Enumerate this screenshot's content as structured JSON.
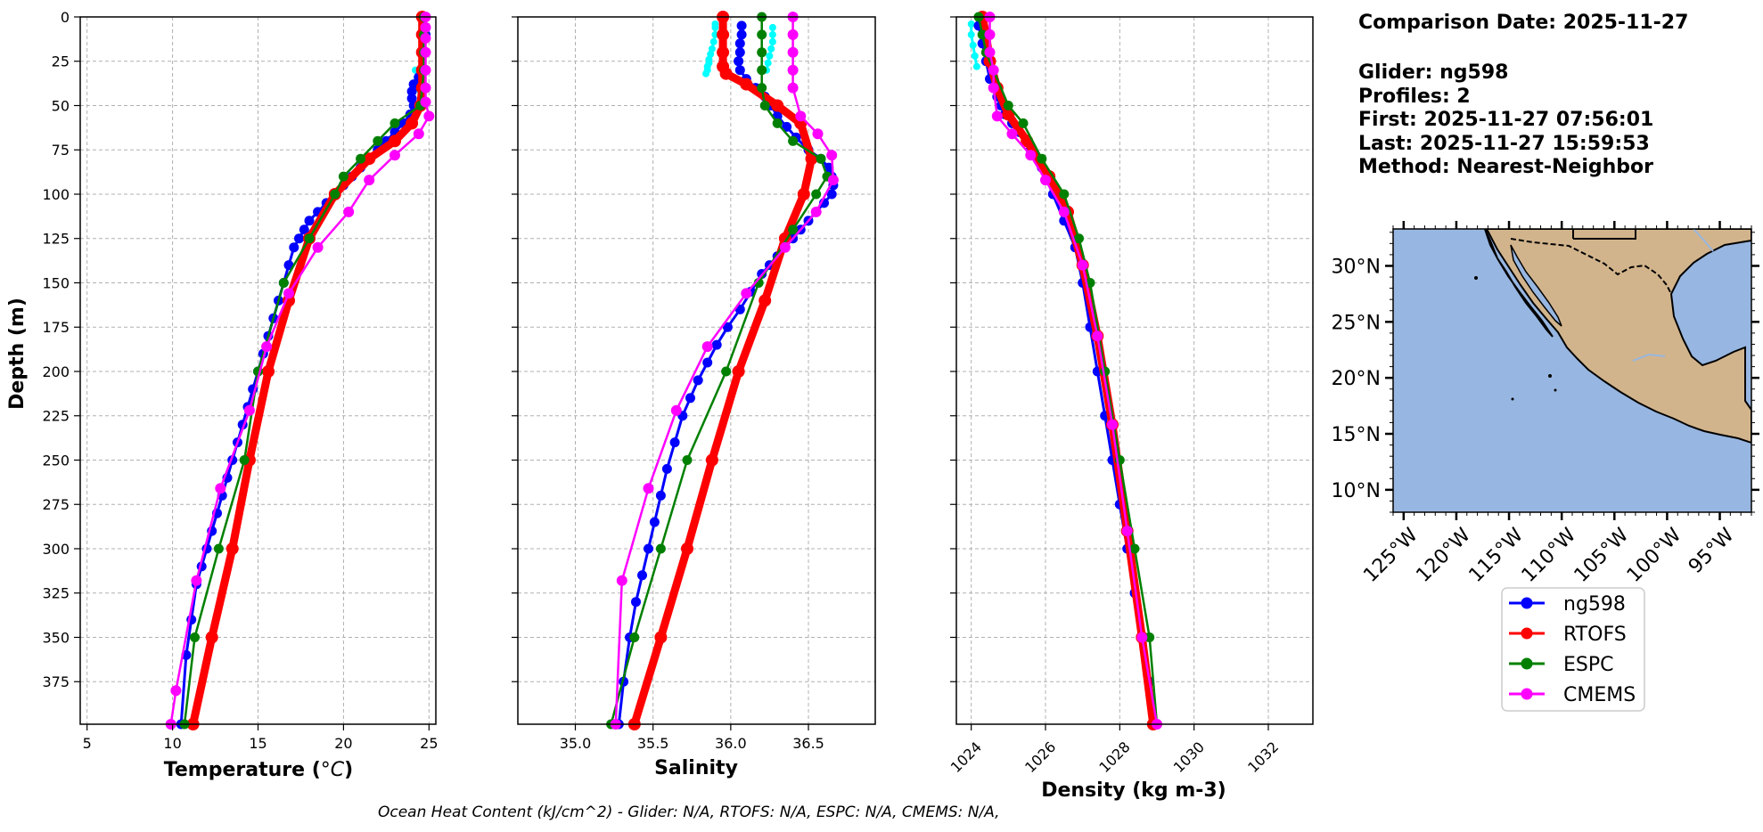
{
  "summary": {
    "comparison_date": "Comparison Date: 2025-11-27",
    "glider": "Glider: ng598",
    "profiles": "Profiles: 2",
    "first": "First: 2025-11-27 07:56:01",
    "last": "Last: 2025-11-27 15:59:53",
    "method": "Method: Nearest-Neighbor"
  },
  "footer": {
    "ohc": "Ocean Heat Content (kJ/cm^2) - Glider: N/A,  RTOFS: N/A,  ESPC: N/A,  CMEMS: N/A,"
  },
  "colors": {
    "ng598": "#0000ff",
    "glider_raw": "#00ffff",
    "RTOFS": "#ff0000",
    "ESPC": "#008000",
    "CMEMS": "#ff00ff",
    "ocean": "#97b6e1",
    "land": "#d2b48c",
    "grid": "#b0b0b0"
  },
  "chart_data": [
    {
      "type": "line",
      "ylabel": "Depth (m)",
      "xlabel": "Temperature (°C)",
      "xlabel_main": "Temperature (",
      "xlabel_unit": "°C",
      "xlabel_end": ")",
      "xlim": [
        4.6,
        25.4
      ],
      "ylim": [
        399,
        0
      ],
      "xticks": [
        5,
        10,
        15,
        20,
        25
      ],
      "xtick_labels": [
        "5",
        "10",
        "15",
        "20",
        "25"
      ],
      "yticks": [
        0,
        25,
        50,
        75,
        100,
        125,
        150,
        175,
        200,
        225,
        250,
        275,
        300,
        325,
        350,
        375
      ],
      "ytick_labels": [
        "0",
        "25",
        "50",
        "75",
        "100",
        "125",
        "150",
        "175",
        "200",
        "225",
        "250",
        "275",
        "300",
        "325",
        "350",
        "375"
      ],
      "grid": true,
      "series": [
        {
          "name": "ng598-raw",
          "x": [
            24.2,
            24.3,
            24.4,
            24.5,
            24.6
          ],
          "y": [
            30,
            34,
            38,
            42,
            46
          ]
        },
        {
          "name": "ng598",
          "x": [
            24.8,
            24.8,
            24.7,
            24.6,
            24.4,
            24.1,
            24.0,
            24.0,
            24.1,
            23.9,
            23.5,
            23.0,
            22.5,
            22.0,
            21.5,
            21.0,
            20.5,
            20.0,
            19.5,
            19.0,
            18.5,
            18.0,
            17.7,
            17.4,
            17.1,
            16.8,
            16.5,
            16.2,
            15.9,
            15.6,
            15.3,
            15.0,
            14.7,
            14.4,
            14.1,
            13.8,
            13.5,
            13.2,
            12.9,
            12.6,
            12.3,
            12.0,
            11.7,
            11.4,
            11.1,
            10.8,
            10.5
          ],
          "y": [
            0,
            10,
            20,
            30,
            34,
            38,
            42,
            46,
            50,
            55,
            60,
            65,
            70,
            75,
            80,
            85,
            90,
            95,
            100,
            105,
            110,
            115,
            120,
            125,
            130,
            140,
            150,
            160,
            170,
            180,
            190,
            200,
            210,
            220,
            230,
            240,
            250,
            260,
            270,
            280,
            290,
            300,
            310,
            320,
            340,
            360,
            399
          ]
        },
        {
          "name": "RTOFS",
          "x": [
            24.6,
            24.6,
            24.6,
            24.6,
            24.6,
            24.5,
            24.0,
            23.0,
            21.5,
            19.5,
            18.0,
            16.8,
            15.6,
            14.5,
            13.5,
            12.3,
            11.2
          ],
          "y": [
            0,
            10,
            20,
            30,
            40,
            50,
            60,
            70,
            80,
            100,
            125,
            160,
            200,
            250,
            300,
            350,
            399
          ]
        },
        {
          "name": "ESPC",
          "x": [
            24.7,
            24.7,
            24.7,
            24.7,
            24.5,
            23.0,
            22.0,
            21.0,
            20.0,
            19.5,
            18.0,
            16.5,
            15.0,
            14.2,
            12.7,
            11.3,
            10.7
          ],
          "y": [
            0,
            10,
            20,
            30,
            50,
            60,
            70,
            80,
            90,
            100,
            125,
            150,
            200,
            250,
            300,
            350,
            399
          ]
        },
        {
          "name": "CMEMS",
          "x": [
            24.8,
            24.8,
            24.8,
            24.8,
            24.8,
            24.8,
            24.8,
            25.0,
            24.4,
            23.0,
            21.5,
            20.3,
            18.5,
            16.8,
            15.5,
            14.5,
            12.8,
            11.4,
            10.2,
            9.9
          ],
          "y": [
            0,
            6,
            12,
            20,
            30,
            40,
            48,
            56,
            66,
            78,
            92,
            110,
            130,
            156,
            186,
            222,
            266,
            318,
            380,
            399
          ]
        }
      ]
    },
    {
      "type": "line",
      "xlabel": "Salinity",
      "xlim": [
        34.63,
        36.93
      ],
      "ylim": [
        399,
        0
      ],
      "xticks": [
        35.0,
        35.5,
        36.0,
        36.5
      ],
      "xtick_labels": [
        "35.0",
        "35.5",
        "36.0",
        "36.5"
      ],
      "yticks": [
        0,
        25,
        50,
        75,
        100,
        125,
        150,
        175,
        200,
        225,
        250,
        275,
        300,
        325,
        350,
        375
      ],
      "grid": true,
      "series": [
        {
          "name": "glider-raw",
          "x": [
            35.9,
            35.9,
            35.9,
            35.89,
            35.88,
            35.87,
            35.86,
            35.86,
            35.85,
            35.85,
            35.84
          ],
          "y": [
            4,
            6,
            10,
            14,
            18,
            21,
            24,
            26,
            28,
            30,
            32
          ]
        },
        {
          "name": "glider-raw-2",
          "x": [
            36.27,
            36.27,
            36.27,
            36.26,
            36.25,
            36.24,
            36.23
          ],
          "y": [
            6,
            10,
            14,
            18,
            22,
            26,
            30
          ]
        },
        {
          "name": "ng598",
          "x": [
            36.07,
            36.07,
            36.06,
            36.06,
            36.05,
            36.06,
            36.1,
            36.16,
            36.22,
            36.26,
            36.3,
            36.36,
            36.42,
            36.5,
            36.58,
            36.63,
            36.65,
            36.66,
            36.65,
            36.6,
            36.55,
            36.5,
            36.45,
            36.4,
            36.35,
            36.3,
            36.25,
            36.2,
            36.13,
            36.06,
            35.98,
            35.91,
            35.85,
            35.79,
            35.74,
            35.69,
            35.64,
            35.59,
            35.55,
            35.51,
            35.47,
            35.43,
            35.39,
            35.35,
            35.31,
            35.28
          ],
          "y": [
            5,
            10,
            15,
            20,
            25,
            30,
            35,
            40,
            45,
            50,
            56,
            62,
            68,
            75,
            80,
            85,
            90,
            95,
            100,
            105,
            110,
            115,
            120,
            125,
            130,
            135,
            140,
            145,
            155,
            165,
            175,
            185,
            195,
            205,
            215,
            225,
            240,
            255,
            270,
            285,
            300,
            315,
            330,
            350,
            375,
            399
          ]
        },
        {
          "name": "RTOFS",
          "x": [
            35.95,
            35.95,
            35.95,
            35.95,
            35.97,
            36.1,
            36.3,
            36.45,
            36.52,
            36.47,
            36.35,
            36.22,
            36.05,
            35.88,
            35.72,
            35.55,
            35.38
          ],
          "y": [
            0,
            10,
            20,
            28,
            32,
            38,
            50,
            60,
            80,
            100,
            125,
            160,
            200,
            250,
            300,
            350,
            399
          ]
        },
        {
          "name": "ESPC",
          "x": [
            36.2,
            36.2,
            36.2,
            36.2,
            36.2,
            36.22,
            36.3,
            36.4,
            36.58,
            36.62,
            36.55,
            36.4,
            36.18,
            35.97,
            35.72,
            35.55,
            35.38,
            35.23
          ],
          "y": [
            0,
            10,
            20,
            30,
            40,
            50,
            60,
            70,
            80,
            90,
            100,
            120,
            150,
            200,
            250,
            300,
            350,
            399
          ]
        },
        {
          "name": "CMEMS",
          "x": [
            36.4,
            36.4,
            36.4,
            36.4,
            36.4,
            36.45,
            36.56,
            36.65,
            36.66,
            36.55,
            36.35,
            36.1,
            35.85,
            35.65,
            35.47,
            35.3,
            35.26
          ],
          "y": [
            0,
            10,
            20,
            30,
            40,
            56,
            66,
            78,
            92,
            110,
            130,
            156,
            186,
            222,
            266,
            318,
            399
          ]
        }
      ]
    },
    {
      "type": "line",
      "xlabel": "Density (kg m-3)",
      "xlim": [
        1023.6,
        1033.2
      ],
      "ylim": [
        399,
        0
      ],
      "xticks": [
        1024,
        1026,
        1028,
        1030,
        1032
      ],
      "xtick_labels": [
        "1024",
        "1026",
        "1028",
        "1030",
        "1032"
      ],
      "yticks": [
        0,
        25,
        50,
        75,
        100,
        125,
        150,
        175,
        200,
        225,
        250,
        275,
        300,
        325,
        350,
        375
      ],
      "grid": true,
      "series": [
        {
          "name": "glider-raw",
          "x": [
            1024.0,
            1024.0,
            1024.05,
            1024.1,
            1024.15
          ],
          "y": [
            4,
            10,
            16,
            22,
            28
          ]
        },
        {
          "name": "ng598",
          "x": [
            1024.2,
            1024.3,
            1024.4,
            1024.5,
            1024.6,
            1024.7,
            1024.8,
            1024.9,
            1025.1,
            1025.3,
            1025.6,
            1025.9,
            1026.2,
            1026.5,
            1026.8,
            1027.0,
            1027.2,
            1027.4,
            1027.6,
            1027.8,
            1028.0,
            1028.2,
            1028.4,
            1028.6,
            1028.8,
            1028.9
          ],
          "y": [
            5,
            15,
            25,
            35,
            40,
            45,
            50,
            55,
            60,
            65,
            75,
            85,
            100,
            115,
            130,
            150,
            175,
            200,
            225,
            250,
            275,
            300,
            325,
            350,
            375,
            399
          ]
        },
        {
          "name": "RTOFS",
          "x": [
            1024.3,
            1024.4,
            1024.5,
            1024.7,
            1025.0,
            1025.5,
            1026.1,
            1026.6,
            1027.0,
            1027.4,
            1027.8,
            1028.2,
            1028.6,
            1028.9
          ],
          "y": [
            0,
            10,
            25,
            40,
            55,
            70,
            90,
            110,
            140,
            180,
            230,
            290,
            350,
            399
          ]
        },
        {
          "name": "ESPC",
          "x": [
            1024.2,
            1024.3,
            1024.4,
            1024.6,
            1025.0,
            1025.4,
            1025.9,
            1026.5,
            1026.9,
            1027.2,
            1027.6,
            1028.0,
            1028.4,
            1028.8,
            1029.0
          ],
          "y": [
            0,
            10,
            20,
            30,
            50,
            60,
            80,
            100,
            125,
            150,
            200,
            250,
            300,
            350,
            399
          ]
        },
        {
          "name": "CMEMS",
          "x": [
            1024.5,
            1024.5,
            1024.5,
            1024.6,
            1024.6,
            1024.7,
            1025.1,
            1025.6,
            1026.0,
            1026.5,
            1027.0,
            1027.4,
            1027.8,
            1028.2,
            1028.6,
            1029.0
          ],
          "y": [
            0,
            10,
            20,
            30,
            40,
            56,
            66,
            78,
            92,
            110,
            140,
            180,
            230,
            290,
            350,
            399
          ]
        }
      ]
    }
  ],
  "map": {
    "lat_ticks": [
      30,
      25,
      20,
      15,
      10
    ],
    "lat_labels": [
      "30°N",
      "25°N",
      "20°N",
      "15°N",
      "10°N"
    ],
    "lon_ticks": [
      -125,
      -120,
      -115,
      -110,
      -105,
      -100,
      -95
    ],
    "lon_labels": [
      "125°W",
      "120°W",
      "115°W",
      "110°W",
      "105°W",
      "100°W",
      "95°W"
    ],
    "lon_range": [
      -126,
      -92
    ],
    "lat_range": [
      8,
      33.3
    ]
  },
  "legend": {
    "items": [
      {
        "name": "ng598",
        "color": "#0000ff"
      },
      {
        "name": "RTOFS",
        "color": "#ff0000"
      },
      {
        "name": "ESPC",
        "color": "#008000"
      },
      {
        "name": "CMEMS",
        "color": "#ff00ff"
      }
    ]
  }
}
